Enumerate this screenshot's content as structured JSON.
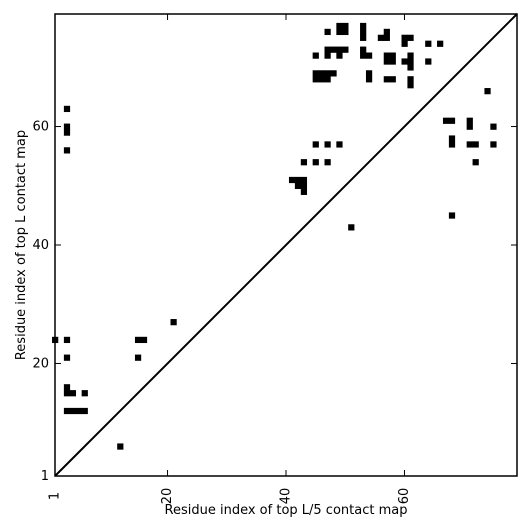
{
  "chart_data": {
    "type": "heatmap",
    "xlabel": "Residue index of top L/5 contact map",
    "ylabel": "Residue index of top L contact map",
    "xlim": [
      1,
      79
    ],
    "ylim": [
      1,
      79
    ],
    "x_ticks": [
      1,
      20,
      40,
      60
    ],
    "y_ticks": [
      1,
      20,
      40,
      60
    ],
    "tick_labels": {
      "x": [
        "1",
        "20",
        "40",
        "60"
      ],
      "y": [
        "1",
        "20",
        "40",
        "60"
      ]
    },
    "diagonal": true,
    "cell_color": "#000000",
    "background_color": "#ffffff",
    "lower_triangle_contacts": [
      [
        1,
        24
      ],
      [
        3,
        24
      ],
      [
        3,
        21
      ],
      [
        3,
        16
      ],
      [
        3,
        15
      ],
      [
        4,
        15
      ],
      [
        6,
        15
      ],
      [
        3,
        12
      ],
      [
        4,
        12
      ],
      [
        5,
        12
      ],
      [
        6,
        12
      ],
      [
        12,
        6
      ],
      [
        15,
        24
      ],
      [
        16,
        24
      ],
      [
        15,
        21
      ],
      [
        21,
        27
      ]
    ],
    "upper_triangle_contacts": [
      [
        3,
        63
      ],
      [
        3,
        60
      ],
      [
        3,
        59
      ],
      [
        3,
        56
      ],
      [
        41,
        51
      ],
      [
        42,
        51
      ],
      [
        43,
        51
      ],
      [
        42,
        50
      ],
      [
        43,
        50
      ],
      [
        43,
        49
      ],
      [
        43,
        54
      ],
      [
        45,
        54
      ],
      [
        47,
        54
      ],
      [
        45,
        57
      ],
      [
        47,
        57
      ],
      [
        49,
        57
      ],
      [
        45,
        69
      ],
      [
        46,
        69
      ],
      [
        47,
        69
      ],
      [
        48,
        69
      ],
      [
        45,
        68
      ],
      [
        46,
        68
      ],
      [
        47,
        68
      ],
      [
        45,
        72
      ],
      [
        47,
        72
      ],
      [
        49,
        72
      ],
      [
        47,
        73
      ],
      [
        48,
        73
      ],
      [
        49,
        73
      ],
      [
        50,
        73
      ],
      [
        47,
        76
      ],
      [
        49,
        77
      ],
      [
        50,
        77
      ],
      [
        49,
        76
      ],
      [
        50,
        76
      ],
      [
        53,
        77
      ],
      [
        53,
        76
      ],
      [
        53,
        75
      ],
      [
        56,
        75
      ],
      [
        57,
        76
      ],
      [
        57,
        75
      ],
      [
        53,
        73
      ],
      [
        53,
        72
      ],
      [
        54,
        72
      ],
      [
        54,
        69
      ],
      [
        54,
        68
      ],
      [
        57,
        72
      ],
      [
        58,
        72
      ],
      [
        57,
        71
      ],
      [
        58,
        71
      ],
      [
        57,
        68
      ],
      [
        58,
        68
      ],
      [
        60,
        75
      ],
      [
        61,
        75
      ],
      [
        60,
        74
      ],
      [
        60,
        71
      ],
      [
        61,
        72
      ],
      [
        61,
        71
      ],
      [
        61,
        70
      ],
      [
        61,
        68
      ],
      [
        61,
        67
      ],
      [
        64,
        74
      ],
      [
        66,
        74
      ],
      [
        64,
        71
      ],
      [
        67,
        61
      ],
      [
        68,
        61
      ],
      [
        68,
        58
      ],
      [
        68,
        57
      ],
      [
        71,
        61
      ],
      [
        71,
        60
      ],
      [
        71,
        57
      ],
      [
        72,
        57
      ],
      [
        72,
        54
      ],
      [
        74,
        66
      ],
      [
        75,
        60
      ],
      [
        75,
        57
      ],
      [
        51,
        43
      ],
      [
        68,
        45
      ]
    ]
  }
}
